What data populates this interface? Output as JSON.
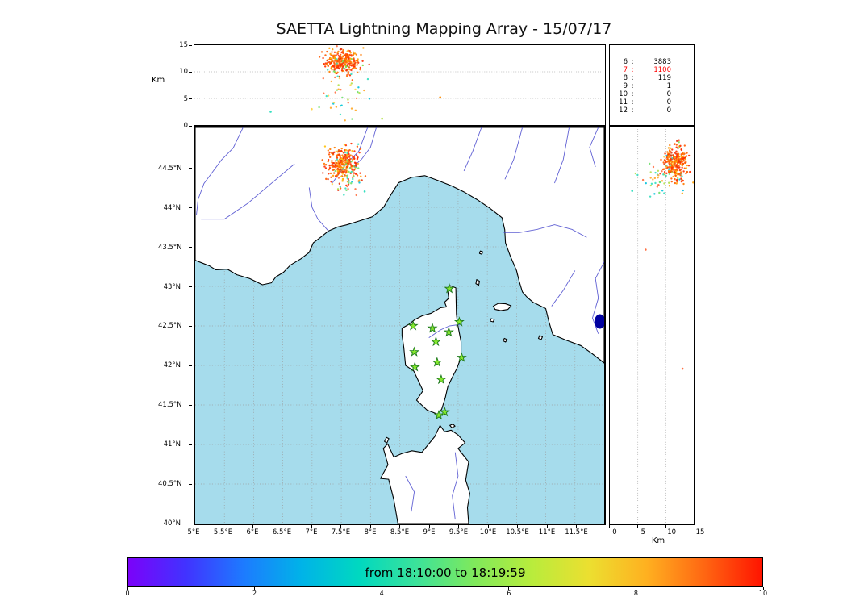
{
  "chart_data": {
    "type": "scatter",
    "title": "SAETTA Lightning Mapping Array - 15/07/17",
    "panels": {
      "alt_lon": {
        "ylabel": "Km",
        "xlim": [
          5,
          12
        ],
        "ylim": [
          0,
          15
        ],
        "yticks": [
          "15",
          "10",
          "5",
          "0"
        ],
        "grid_y": [
          5,
          10
        ],
        "clusters": [
          {
            "cx": 7.52,
            "cy": 11.8,
            "sx": 0.14,
            "sy": 1.1,
            "n": 270,
            "palette": "storm"
          },
          {
            "cx": 7.55,
            "cy": 6.5,
            "sx": 0.2,
            "sy": 2.6,
            "n": 45,
            "palette": "mixed"
          }
        ],
        "points": [
          [
            9.19,
            5.2,
            "#ff8c00"
          ],
          [
            6.3,
            2.5,
            "#35dfc0"
          ],
          [
            8.2,
            1.2,
            "#b2e04a"
          ],
          [
            7.0,
            3.0,
            "#ffd54f"
          ]
        ]
      },
      "map": {
        "xlim": [
          5,
          12
        ],
        "ylim": [
          40,
          45.01
        ],
        "xticks": [
          "5°E",
          "5.5°E",
          "6°E",
          "6.5°E",
          "7°E",
          "7.5°E",
          "8°E",
          "8.5°E",
          "9°E",
          "9.5°E",
          "10°E",
          "10.5°E",
          "11°E",
          "11.5°E"
        ],
        "yticks": [
          "44.5°N",
          "44°N",
          "43.5°N",
          "43°N",
          "42.5°N",
          "42°N",
          "41.5°N",
          "41°N",
          "40.5°N",
          "40°N"
        ],
        "sea_color": "#a6dcec",
        "land_color": "#ffffff",
        "coast_color": "#000000",
        "river_color": "#4444cc",
        "lake_color": "#0000a0",
        "station_style": {
          "fill": "#86e82e",
          "stroke": "#1f7a1f"
        },
        "stations": [
          [
            9.35,
            42.97
          ],
          [
            8.73,
            42.5
          ],
          [
            9.06,
            42.47
          ],
          [
            9.34,
            42.42
          ],
          [
            9.52,
            42.55
          ],
          [
            9.12,
            42.3
          ],
          [
            8.75,
            42.17
          ],
          [
            9.56,
            42.1
          ],
          [
            9.14,
            42.04
          ],
          [
            8.76,
            41.98
          ],
          [
            9.21,
            41.82
          ],
          [
            9.17,
            41.37
          ],
          [
            9.27,
            41.41
          ]
        ],
        "clusters": [
          {
            "cx": 7.52,
            "cy": 44.55,
            "sx": 0.14,
            "sy": 0.11,
            "n": 270,
            "palette": "storm"
          },
          {
            "cx": 7.62,
            "cy": 44.38,
            "sx": 0.12,
            "sy": 0.13,
            "n": 45,
            "palette": "mixed"
          }
        ],
        "points": [
          [
            7.9,
            44.2,
            "#35dfc0"
          ]
        ]
      },
      "alt_lat": {
        "xlabel": "Km",
        "xlim": [
          0,
          15
        ],
        "ylim": [
          40,
          45.01
        ],
        "xticks": [
          "0",
          "5",
          "10",
          "15"
        ],
        "grid_x": [
          5,
          10
        ],
        "clusters": [
          {
            "cx": 11.8,
            "cy": 44.55,
            "sx": 1.1,
            "sy": 0.11,
            "n": 270,
            "palette": "storm"
          },
          {
            "cx": 8.8,
            "cy": 44.35,
            "sx": 1.8,
            "sy": 0.13,
            "n": 45,
            "palette": "mixed"
          }
        ],
        "points": [
          [
            6.4,
            43.46,
            "#ff7043"
          ],
          [
            13.0,
            41.96,
            "#ff7043"
          ],
          [
            4.0,
            44.2,
            "#35dfc0"
          ]
        ]
      }
    },
    "palettes": {
      "storm": [
        [
          "#ff2d00",
          30
        ],
        [
          "#ff5a00",
          25
        ],
        [
          "#ff7b00",
          18
        ],
        [
          "#ff9e00",
          10
        ],
        [
          "#e53210",
          8
        ],
        [
          "#ffc107",
          4
        ],
        [
          "#35dfc0",
          3
        ],
        [
          "#7ae04a",
          2
        ]
      ],
      "mixed": [
        [
          "#35dfc0",
          24
        ],
        [
          "#00c2d9",
          14
        ],
        [
          "#6fe06a",
          16
        ],
        [
          "#b2e04a",
          10
        ],
        [
          "#ffa726",
          14
        ],
        [
          "#ffd54f",
          10
        ],
        [
          "#ff7043",
          12
        ]
      ]
    },
    "station_counts": {
      "separator": ":",
      "rows": [
        [
          "6",
          "3883",
          "#000000"
        ],
        [
          "7",
          "1100",
          "#ff0000"
        ],
        [
          "8",
          "119",
          "#000000"
        ],
        [
          "9",
          "1",
          "#000000"
        ],
        [
          "10",
          "0",
          "#000000"
        ],
        [
          "11",
          "0",
          "#000000"
        ],
        [
          "12",
          "0",
          "#000000"
        ]
      ]
    },
    "colorbar": {
      "label": "from 18:10:00 to 18:19:59",
      "ticks": [
        "0",
        "2",
        "4",
        "6",
        "8",
        "10"
      ],
      "gradient": [
        "#7b02fa",
        "#4133ff",
        "#1d7bff",
        "#00b3e8",
        "#00d8c0",
        "#3ce29a",
        "#7fe95c",
        "#b8ec3c",
        "#ecdf30",
        "#ffb020",
        "#ff6612",
        "#ff1400"
      ]
    }
  }
}
